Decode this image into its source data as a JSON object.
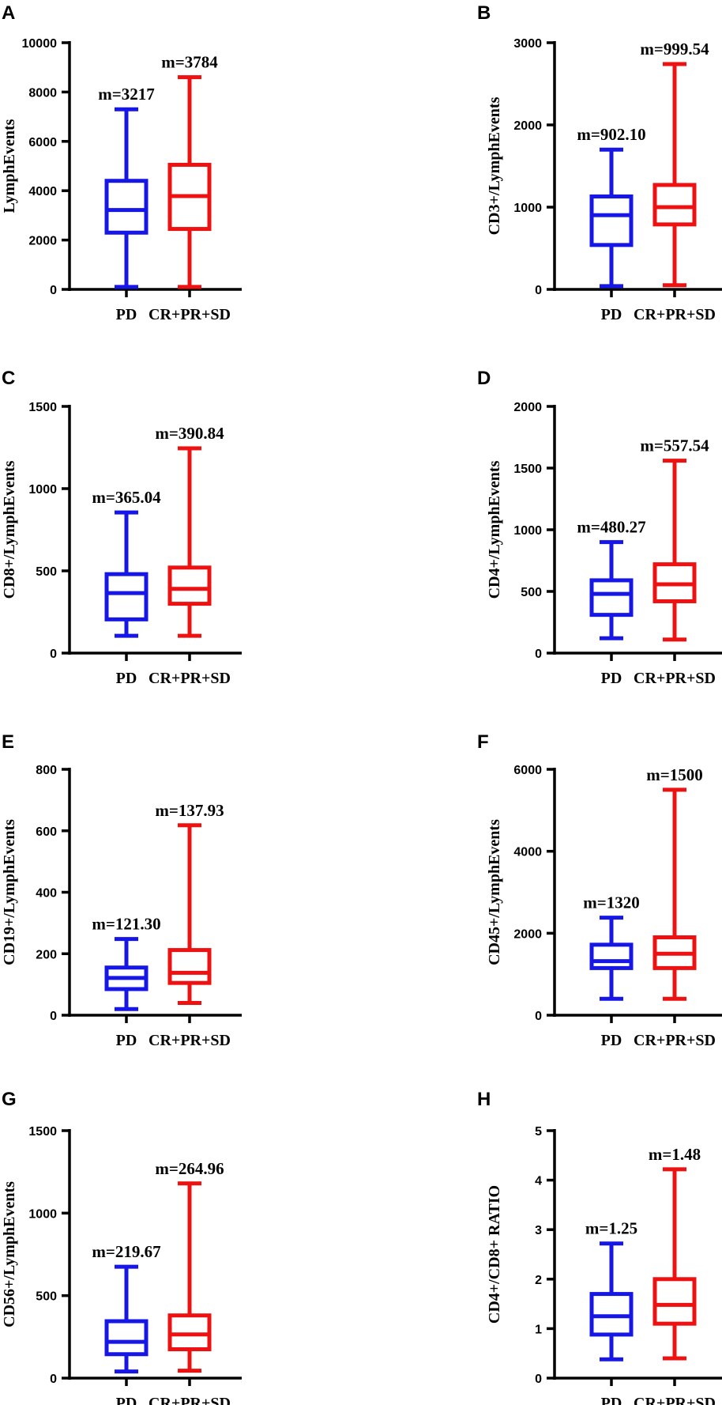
{
  "chart_data": [
    {
      "type": "box",
      "panel": "A",
      "ylabel": "LymphEvents",
      "ylim": [
        0,
        10000
      ],
      "yticks": [
        0,
        2000,
        4000,
        6000,
        8000,
        10000
      ],
      "categories": [
        "PD",
        "CR+PR+SD"
      ],
      "groups": [
        {
          "name": "PD",
          "color": "#1616e6",
          "min": 100,
          "q1": 2300,
          "median": 3217,
          "q3": 4400,
          "max": 7300,
          "mean_label": "m=3217"
        },
        {
          "name": "CR+PR+SD",
          "color": "#ee1111",
          "min": 100,
          "q1": 2450,
          "median": 3784,
          "q3": 5050,
          "max": 8600,
          "mean_label": "m=3784"
        }
      ]
    },
    {
      "type": "box",
      "panel": "B",
      "ylabel": "CD3+/LymphEvents",
      "ylim": [
        0,
        3000
      ],
      "yticks": [
        0,
        1000,
        2000,
        3000
      ],
      "categories": [
        "PD",
        "CR+PR+SD"
      ],
      "groups": [
        {
          "name": "PD",
          "color": "#1616e6",
          "min": 40,
          "q1": 540,
          "median": 902.1,
          "q3": 1130,
          "max": 1700,
          "mean_label": "m=902.10"
        },
        {
          "name": "CR+PR+SD",
          "color": "#ee1111",
          "min": 50,
          "q1": 790,
          "median": 999.54,
          "q3": 1270,
          "max": 2740,
          "mean_label": "m=999.54"
        }
      ]
    },
    {
      "type": "box",
      "panel": "C",
      "ylabel": "CD8+/LymphEvents",
      "ylim": [
        0,
        1500
      ],
      "yticks": [
        0,
        500,
        1000,
        1500
      ],
      "categories": [
        "PD",
        "CR+PR+SD"
      ],
      "groups": [
        {
          "name": "PD",
          "color": "#1616e6",
          "min": 105,
          "q1": 205,
          "median": 365.04,
          "q3": 480,
          "max": 855,
          "mean_label": "m=365.04"
        },
        {
          "name": "CR+PR+SD",
          "color": "#ee1111",
          "min": 105,
          "q1": 300,
          "median": 390.84,
          "q3": 520,
          "max": 1245,
          "mean_label": "m=390.84"
        }
      ]
    },
    {
      "type": "box",
      "panel": "D",
      "ylabel": "CD4+/LymphEvents",
      "ylim": [
        0,
        2000
      ],
      "yticks": [
        0,
        500,
        1000,
        1500,
        2000
      ],
      "categories": [
        "PD",
        "CR+PR+SD"
      ],
      "groups": [
        {
          "name": "PD",
          "color": "#1616e6",
          "min": 120,
          "q1": 310,
          "median": 480.27,
          "q3": 590,
          "max": 900,
          "mean_label": "m=480.27"
        },
        {
          "name": "CR+PR+SD",
          "color": "#ee1111",
          "min": 110,
          "q1": 420,
          "median": 557.54,
          "q3": 720,
          "max": 1560,
          "mean_label": "m=557.54"
        }
      ]
    },
    {
      "type": "box",
      "panel": "E",
      "ylabel": "CD19+/LymphEvents",
      "ylim": [
        0,
        800
      ],
      "yticks": [
        0,
        200,
        400,
        600,
        800
      ],
      "categories": [
        "PD",
        "CR+PR+SD"
      ],
      "groups": [
        {
          "name": "PD",
          "color": "#1616e6",
          "min": 20,
          "q1": 85,
          "median": 121.3,
          "q3": 155,
          "max": 248,
          "mean_label": "m=121.30"
        },
        {
          "name": "CR+PR+SD",
          "color": "#ee1111",
          "min": 40,
          "q1": 105,
          "median": 137.93,
          "q3": 212,
          "max": 618,
          "mean_label": "m=137.93"
        }
      ]
    },
    {
      "type": "box",
      "panel": "F",
      "ylabel": "CD45+/LymphEvents",
      "ylim": [
        0,
        6000
      ],
      "yticks": [
        0,
        2000,
        4000,
        6000
      ],
      "categories": [
        "PD",
        "CR+PR+SD"
      ],
      "groups": [
        {
          "name": "PD",
          "color": "#1616e6",
          "min": 400,
          "q1": 1150,
          "median": 1320,
          "q3": 1720,
          "max": 2380,
          "mean_label": "m=1320"
        },
        {
          "name": "CR+PR+SD",
          "color": "#ee1111",
          "min": 400,
          "q1": 1150,
          "median": 1500,
          "q3": 1900,
          "max": 5500,
          "mean_label": "m=1500"
        }
      ]
    },
    {
      "type": "box",
      "panel": "G",
      "ylabel": "CD56+/LymphEvents",
      "ylim": [
        0,
        1500
      ],
      "yticks": [
        0,
        500,
        1000,
        1500
      ],
      "categories": [
        "PD",
        "CR+PR+SD"
      ],
      "groups": [
        {
          "name": "PD",
          "color": "#1616e6",
          "min": 40,
          "q1": 145,
          "median": 219.67,
          "q3": 345,
          "max": 675,
          "mean_label": "m=219.67"
        },
        {
          "name": "CR+PR+SD",
          "color": "#ee1111",
          "min": 45,
          "q1": 175,
          "median": 264.96,
          "q3": 380,
          "max": 1180,
          "mean_label": "m=264.96"
        }
      ]
    },
    {
      "type": "box",
      "panel": "H",
      "ylabel": "CD4+/CD8+ RATIO",
      "ylim": [
        0,
        5
      ],
      "yticks": [
        0,
        1,
        2,
        3,
        4,
        5
      ],
      "categories": [
        "PD",
        "CR+PR+SD"
      ],
      "groups": [
        {
          "name": "PD",
          "color": "#1616e6",
          "min": 0.38,
          "q1": 0.88,
          "median": 1.25,
          "q3": 1.7,
          "max": 2.72,
          "mean_label": "m=1.25"
        },
        {
          "name": "CR+PR+SD",
          "color": "#ee1111",
          "min": 0.4,
          "q1": 1.1,
          "median": 1.48,
          "q3": 2.0,
          "max": 4.22,
          "mean_label": "m=1.48"
        }
      ]
    }
  ]
}
